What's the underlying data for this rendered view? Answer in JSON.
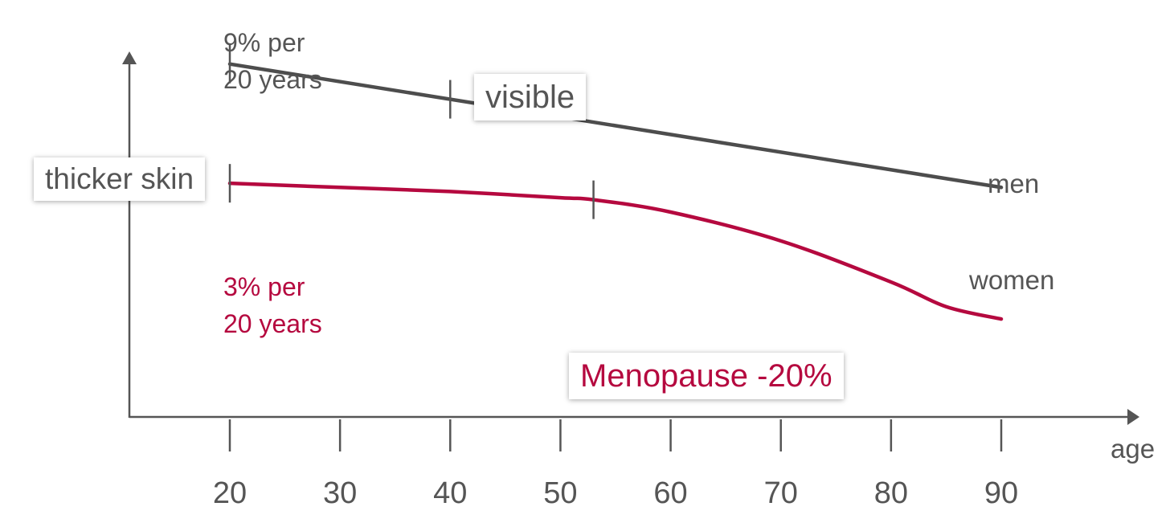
{
  "chart_data": {
    "type": "line",
    "xlabel": "age",
    "ylabel": "thicker skin",
    "x_ticks": [
      20,
      30,
      40,
      50,
      60,
      70,
      80,
      90
    ],
    "xlim": [
      20,
      90
    ],
    "ylim": [
      0,
      1
    ],
    "grid": false,
    "legend": "inline labels at line ends",
    "series": [
      {
        "name": "men",
        "color": "#4d4d4d",
        "points": [
          [
            20,
            0.86
          ],
          [
            90,
            0.56
          ]
        ],
        "markers_x": [
          20,
          40
        ]
      },
      {
        "name": "women",
        "color": "#b5093f",
        "points": [
          [
            20,
            0.57
          ],
          [
            30,
            0.56
          ],
          [
            40,
            0.55
          ],
          [
            50,
            0.535
          ],
          [
            53,
            0.53
          ],
          [
            60,
            0.5
          ],
          [
            70,
            0.43
          ],
          [
            80,
            0.33
          ],
          [
            85,
            0.27
          ],
          [
            90,
            0.24
          ]
        ],
        "markers_x": [
          20,
          53
        ]
      }
    ],
    "annotations": {
      "men_rate": "9% per\n20 years",
      "women_rate": "3% per\n20 years",
      "visible": "visible",
      "menopause": "Menopause -20%"
    }
  },
  "colors": {
    "axis": "#555555",
    "men": "#4d4d4d",
    "women": "#b5093f",
    "text": "#555555"
  }
}
